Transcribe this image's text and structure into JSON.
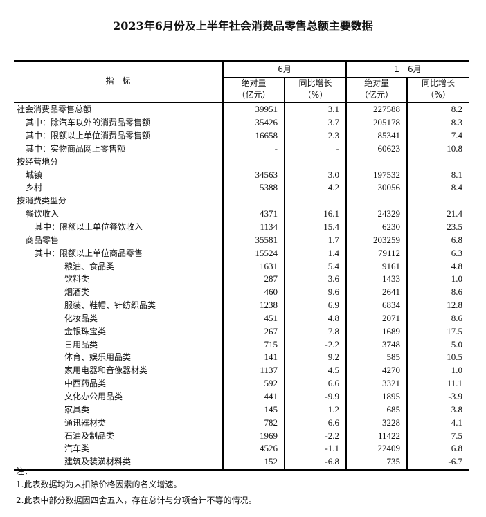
{
  "title": "2023年6月份及上半年社会消费品零售总额主要数据",
  "header": {
    "indicator": "指　标",
    "group_month": "6月",
    "group_ytd": "1－6月",
    "abs_label": "绝对量",
    "abs_unit": "（亿元）",
    "growth_label": "同比增长",
    "growth_unit": "（%）"
  },
  "rows": [
    {
      "label": "社会消费品零售总额",
      "level": 0,
      "m_abs": "39951",
      "m_g": "3.1",
      "y_abs": "227588",
      "y_g": "8.2"
    },
    {
      "label": "其中：除汽车以外的消费品零售额",
      "level": 1,
      "m_abs": "35426",
      "m_g": "3.7",
      "y_abs": "205178",
      "y_g": "8.3"
    },
    {
      "label": "其中：限额以上单位消费品零售额",
      "level": 1,
      "m_abs": "16658",
      "m_g": "2.3",
      "y_abs": "85341",
      "y_g": "7.4"
    },
    {
      "label": "其中：实物商品网上零售额",
      "level": 1,
      "m_abs": "-",
      "m_g": "-",
      "y_abs": "60623",
      "y_g": "10.8"
    },
    {
      "label": "按经营地分",
      "level": 0,
      "m_abs": "",
      "m_g": "",
      "y_abs": "",
      "y_g": ""
    },
    {
      "label": "城镇",
      "level": 1,
      "m_abs": "34563",
      "m_g": "3.0",
      "y_abs": "197532",
      "y_g": "8.1"
    },
    {
      "label": "乡村",
      "level": 1,
      "m_abs": "5388",
      "m_g": "4.2",
      "y_abs": "30056",
      "y_g": "8.4"
    },
    {
      "label": "按消费类型分",
      "level": 0,
      "m_abs": "",
      "m_g": "",
      "y_abs": "",
      "y_g": ""
    },
    {
      "label": "餐饮收入",
      "level": 1,
      "m_abs": "4371",
      "m_g": "16.1",
      "y_abs": "24329",
      "y_g": "21.4"
    },
    {
      "label": "其中：限额以上单位餐饮收入",
      "level": 2,
      "m_abs": "1134",
      "m_g": "15.4",
      "y_abs": "6230",
      "y_g": "23.5"
    },
    {
      "label": "商品零售",
      "level": 1,
      "m_abs": "35581",
      "m_g": "1.7",
      "y_abs": "203259",
      "y_g": "6.8"
    },
    {
      "label": "其中：限额以上单位商品零售",
      "level": 2,
      "m_abs": "15524",
      "m_g": "1.4",
      "y_abs": "79112",
      "y_g": "6.3"
    },
    {
      "label": "粮油、食品类",
      "level": 3,
      "m_abs": "1631",
      "m_g": "5.4",
      "y_abs": "9161",
      "y_g": "4.8"
    },
    {
      "label": "饮料类",
      "level": 3,
      "m_abs": "287",
      "m_g": "3.6",
      "y_abs": "1433",
      "y_g": "1.0"
    },
    {
      "label": "烟酒类",
      "level": 3,
      "m_abs": "460",
      "m_g": "9.6",
      "y_abs": "2641",
      "y_g": "8.6"
    },
    {
      "label": "服装、鞋帽、针纺织品类",
      "level": 3,
      "m_abs": "1238",
      "m_g": "6.9",
      "y_abs": "6834",
      "y_g": "12.8"
    },
    {
      "label": "化妆品类",
      "level": 3,
      "m_abs": "451",
      "m_g": "4.8",
      "y_abs": "2071",
      "y_g": "8.6"
    },
    {
      "label": "金银珠宝类",
      "level": 3,
      "m_abs": "267",
      "m_g": "7.8",
      "y_abs": "1689",
      "y_g": "17.5"
    },
    {
      "label": "日用品类",
      "level": 3,
      "m_abs": "715",
      "m_g": "-2.2",
      "y_abs": "3748",
      "y_g": "5.0"
    },
    {
      "label": "体育、娱乐用品类",
      "level": 3,
      "m_abs": "141",
      "m_g": "9.2",
      "y_abs": "585",
      "y_g": "10.5"
    },
    {
      "label": "家用电器和音像器材类",
      "level": 3,
      "m_abs": "1137",
      "m_g": "4.5",
      "y_abs": "4270",
      "y_g": "1.0"
    },
    {
      "label": "中西药品类",
      "level": 3,
      "m_abs": "592",
      "m_g": "6.6",
      "y_abs": "3321",
      "y_g": "11.1"
    },
    {
      "label": "文化办公用品类",
      "level": 3,
      "m_abs": "441",
      "m_g": "-9.9",
      "y_abs": "1895",
      "y_g": "-3.9"
    },
    {
      "label": "家具类",
      "level": 3,
      "m_abs": "145",
      "m_g": "1.2",
      "y_abs": "685",
      "y_g": "3.8"
    },
    {
      "label": "通讯器材类",
      "level": 3,
      "m_abs": "782",
      "m_g": "6.6",
      "y_abs": "3228",
      "y_g": "4.1"
    },
    {
      "label": "石油及制品类",
      "level": 3,
      "m_abs": "1969",
      "m_g": "-2.2",
      "y_abs": "11422",
      "y_g": "7.5"
    },
    {
      "label": "汽车类",
      "level": 3,
      "m_abs": "4526",
      "m_g": "-1.1",
      "y_abs": "22409",
      "y_g": "6.8"
    },
    {
      "label": "建筑及装潢材料类",
      "level": 3,
      "m_abs": "152",
      "m_g": "-6.8",
      "y_abs": "735",
      "y_g": "-6.7"
    }
  ],
  "notes": {
    "heading": "注：",
    "items": [
      "1.此表数据均为未扣除价格因素的名义增速。",
      "2.此表中部分数据因四舍五入，存在总计与分项合计不等的情况。"
    ]
  }
}
